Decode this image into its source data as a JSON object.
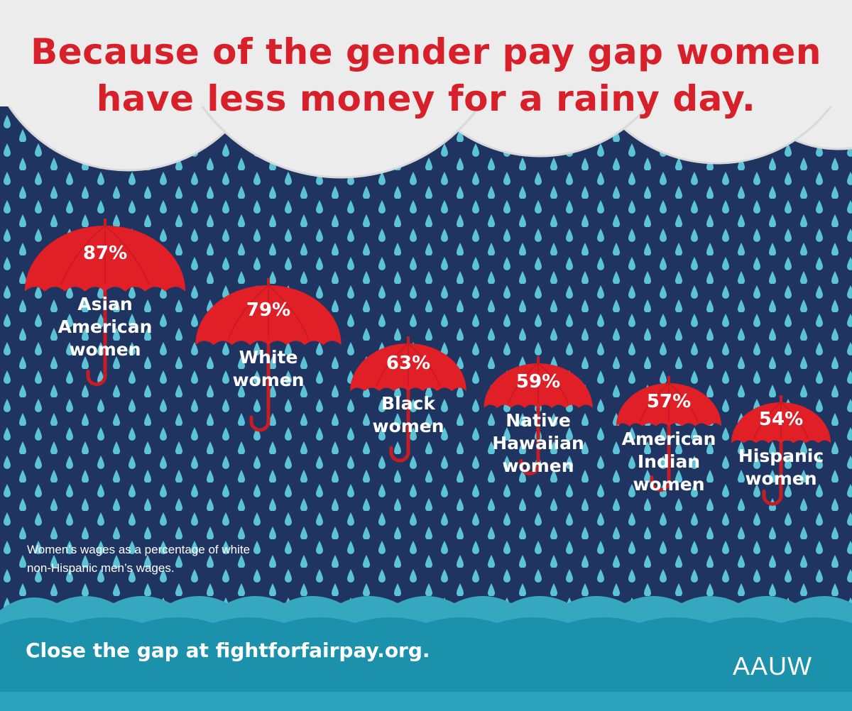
{
  "chart_data": {
    "type": "umbrella",
    "title": "Because of the gender pay gap women have less money for a rainy day.",
    "categories": [
      "Asian American women",
      "White women",
      "Black women",
      "Native Hawaiian women",
      "American Indian women",
      "Hispanic women"
    ],
    "values": [
      87,
      79,
      63,
      59,
      57,
      54
    ],
    "value_labels": [
      "87%",
      "79%",
      "63%",
      "59%",
      "57%",
      "54%"
    ],
    "color": "#e01f27",
    "note": "Women’s wages as a percentage of white non-Hispanic men’s wages.",
    "footer": "Close the gap at fightforfairpay.org.",
    "logo": "AAUW"
  }
}
